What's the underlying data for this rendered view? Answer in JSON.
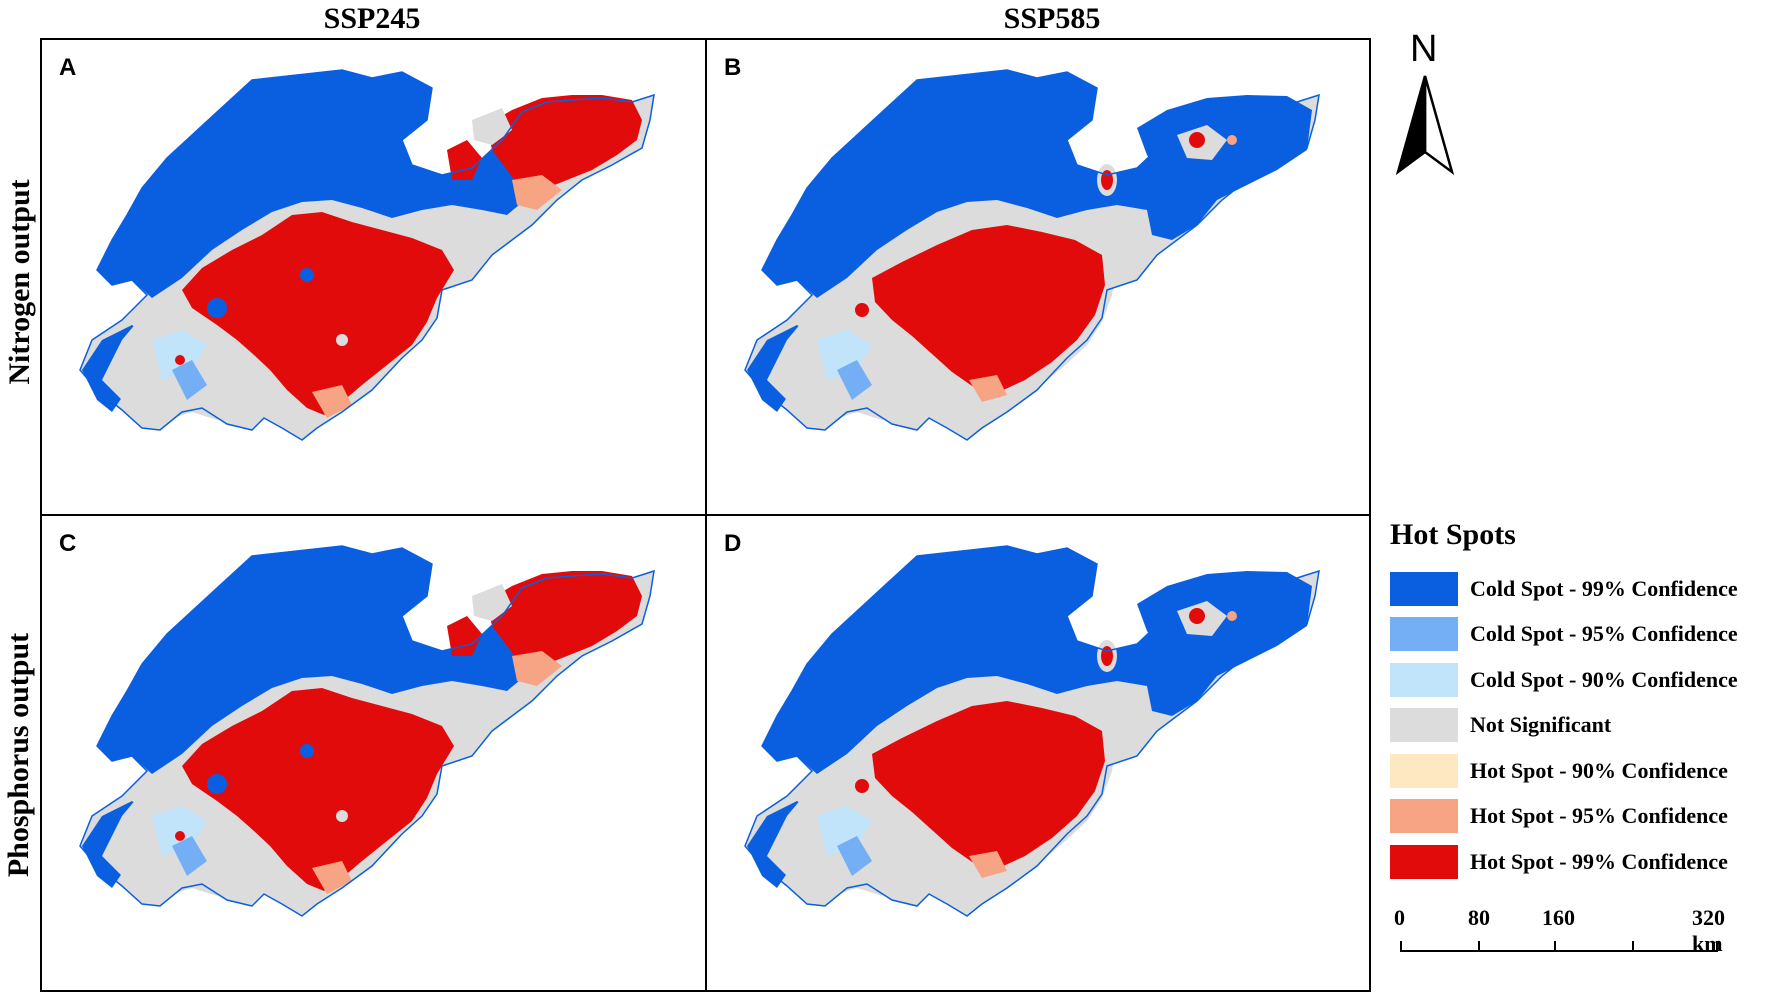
{
  "columns": [
    "SSP245",
    "SSP585"
  ],
  "rows": [
    "Nitrogen output",
    "Phosphorus output"
  ],
  "panels": [
    {
      "letter": "A",
      "scenario": "SSP245",
      "variable": "Nitrogen output"
    },
    {
      "letter": "B",
      "scenario": "SSP585",
      "variable": "Nitrogen output"
    },
    {
      "letter": "C",
      "scenario": "SSP245",
      "variable": "Phosphorus output"
    },
    {
      "letter": "D",
      "scenario": "SSP585",
      "variable": "Phosphorus output"
    }
  ],
  "north_arrow": {
    "label": "N",
    "icon": "north-arrow-icon"
  },
  "legend": {
    "title": "Hot Spots",
    "items": [
      {
        "label": "Cold Spot - 99% Confidence",
        "color": "#0a5fe0"
      },
      {
        "label": "Cold Spot - 95% Confidence",
        "color": "#74aef5"
      },
      {
        "label": "Cold Spot - 90% Confidence",
        "color": "#c2e4fb"
      },
      {
        "label": "Not Significant",
        "color": "#dcdcdc"
      },
      {
        "label": "Hot Spot - 90% Confidence",
        "color": "#fde8c2"
      },
      {
        "label": "Hot Spot - 95% Confidence",
        "color": "#f6a484"
      },
      {
        "label": "Hot Spot - 99% Confidence",
        "color": "#e20b0b"
      }
    ]
  },
  "scale_bar": {
    "labels": [
      "0",
      "80",
      "160",
      "320 km"
    ],
    "unit": "km"
  },
  "colors": {
    "cold99": "#0a5fe0",
    "cold95": "#74aef5",
    "cold90": "#c2e4fb",
    "notsig": "#dcdcdc",
    "hot90": "#fde8c2",
    "hot95": "#f6a484",
    "hot99": "#e20b0b"
  }
}
